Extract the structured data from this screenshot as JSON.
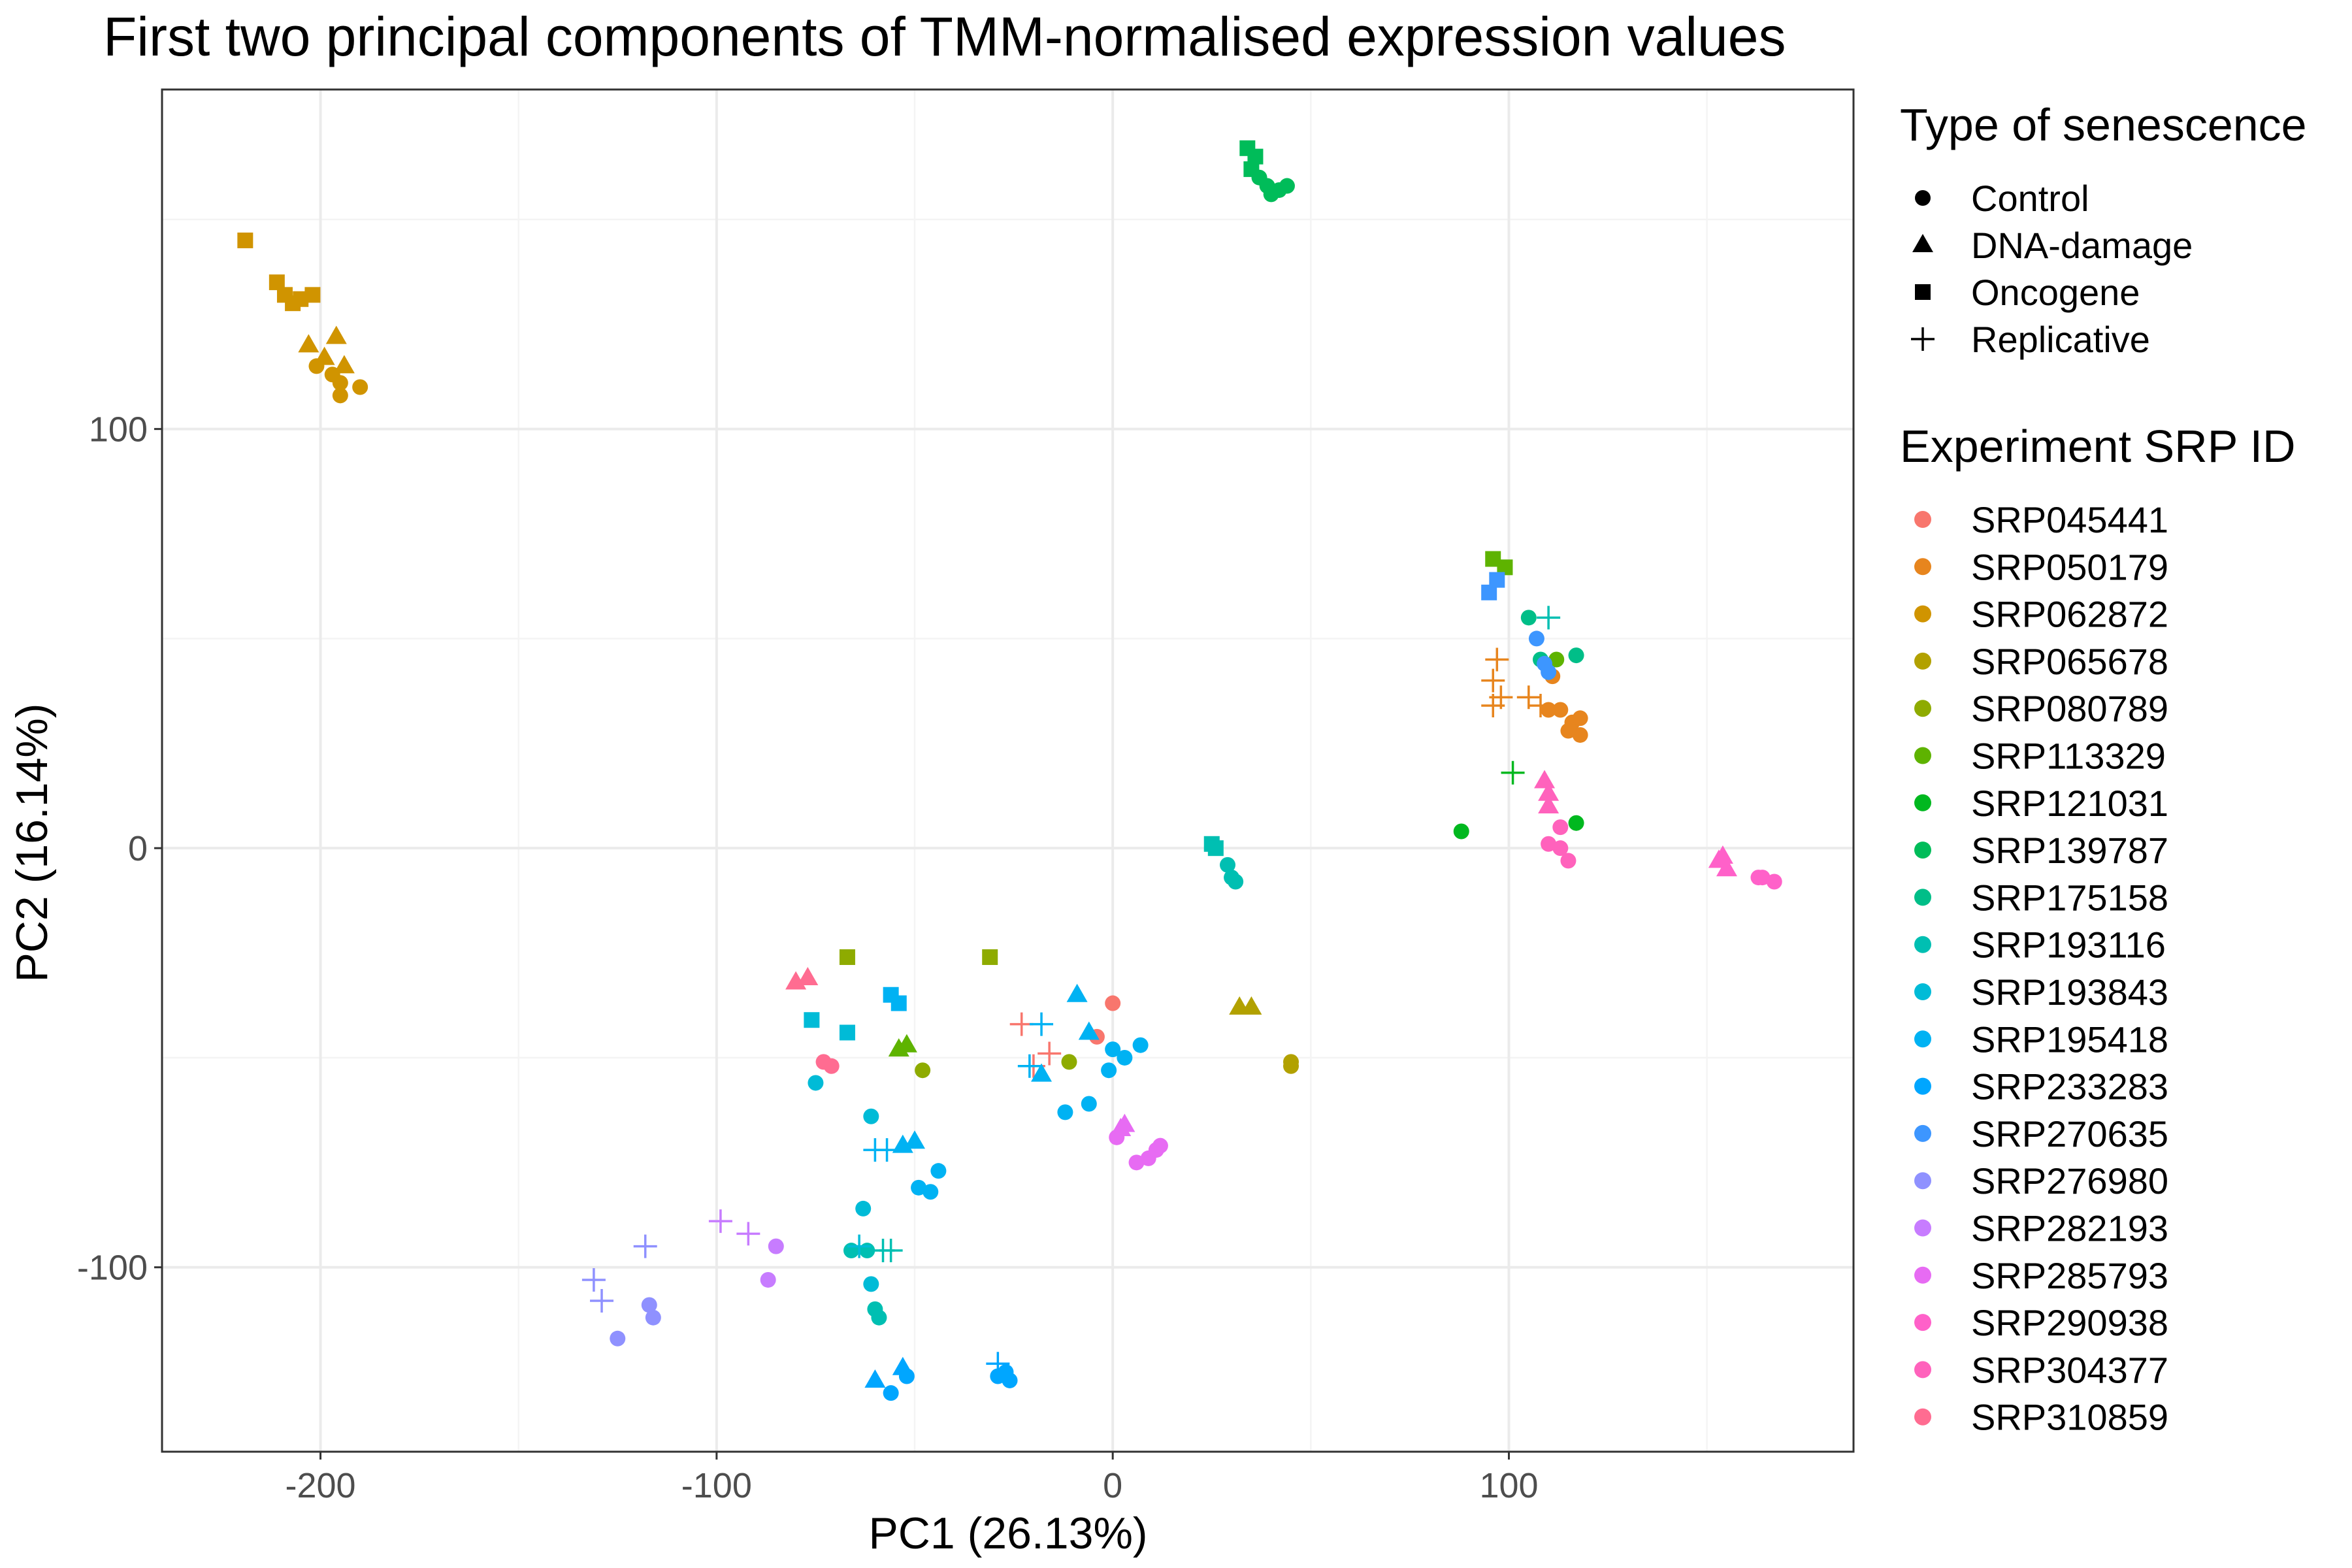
{
  "colors": {
    "SRP045441": "#F8766D",
    "SRP050179": "#E7851E",
    "SRP062872": "#D09400",
    "SRP065678": "#B2A100",
    "SRP080789": "#8EAB00",
    "SRP113329": "#5EB300",
    "SRP121031": "#00B81F",
    "SRP139787": "#00BC59",
    "SRP175158": "#00BE88",
    "SRP193116": "#00BFB2",
    "SRP193843": "#00BBD7",
    "SRP195418": "#00B2F3",
    "SRP233283": "#00A6FF",
    "SRP270635": "#3D96FF",
    "SRP276980": "#8F91FF",
    "SRP282193": "#C77CFF",
    "SRP285793": "#E76BF3",
    "SRP290938": "#FF61C9",
    "SRP304377": "#FF62BC",
    "SRP310859": "#FF6C91"
  },
  "chart_data": {
    "type": "scatter",
    "title": "First two principal components of TMM-normalised expression values",
    "xlabel": "PC1 (26.13%)",
    "ylabel": "PC2 (16.14%)",
    "xlim": [
      -240,
      187
    ],
    "ylim": [
      -144,
      181
    ],
    "x_ticks": [
      -200,
      -100,
      0,
      100
    ],
    "x_tick_labels": [
      "-200",
      "-100",
      "0",
      "100"
    ],
    "y_ticks": [
      -100,
      0,
      100
    ],
    "y_tick_labels": [
      "-100",
      "0",
      "100"
    ],
    "grid": true,
    "legend_position": "right",
    "shape_legend": {
      "title": "Type of senescence",
      "entries": [
        {
          "label": "Control",
          "shape": "circle"
        },
        {
          "label": "DNA-damage",
          "shape": "triangle"
        },
        {
          "label": "Oncogene",
          "shape": "square"
        },
        {
          "label": "Replicative",
          "shape": "plus"
        }
      ]
    },
    "color_legend": {
      "title": "Experiment SRP ID",
      "entries": [
        "SRP045441",
        "SRP050179",
        "SRP062872",
        "SRP065678",
        "SRP080789",
        "SRP113329",
        "SRP121031",
        "SRP139787",
        "SRP175158",
        "SRP193116",
        "SRP193843",
        "SRP195418",
        "SRP233283",
        "SRP270635",
        "SRP276980",
        "SRP282193",
        "SRP285793",
        "SRP290938",
        "SRP304377",
        "SRP310859"
      ]
    },
    "series": [
      {
        "name": "SRP045441",
        "points": [
          {
            "x": 0,
            "y": -37,
            "shape": "circle"
          },
          {
            "x": -4,
            "y": -45,
            "shape": "circle"
          },
          {
            "x": -23,
            "y": -42,
            "shape": "plus"
          },
          {
            "x": -16,
            "y": -49,
            "shape": "plus"
          },
          {
            "x": -20,
            "y": -52,
            "shape": "plus"
          }
        ]
      },
      {
        "name": "SRP050179",
        "points": [
          {
            "x": 97,
            "y": 45,
            "shape": "plus"
          },
          {
            "x": 96,
            "y": 40,
            "shape": "plus"
          },
          {
            "x": 96,
            "y": 34,
            "shape": "plus"
          },
          {
            "x": 98,
            "y": 36,
            "shape": "plus"
          },
          {
            "x": 105,
            "y": 36,
            "shape": "plus"
          },
          {
            "x": 108,
            "y": 34,
            "shape": "plus"
          },
          {
            "x": 111,
            "y": 41,
            "shape": "circle"
          },
          {
            "x": 110,
            "y": 33,
            "shape": "circle"
          },
          {
            "x": 113,
            "y": 33,
            "shape": "circle"
          },
          {
            "x": 116,
            "y": 30,
            "shape": "circle"
          },
          {
            "x": 118,
            "y": 31,
            "shape": "circle"
          },
          {
            "x": 118,
            "y": 27,
            "shape": "circle"
          },
          {
            "x": 115,
            "y": 28,
            "shape": "circle"
          }
        ]
      },
      {
        "name": "SRP062872",
        "points": [
          {
            "x": -219,
            "y": 145,
            "shape": "square"
          },
          {
            "x": -211,
            "y": 135,
            "shape": "square"
          },
          {
            "x": -209,
            "y": 132,
            "shape": "square"
          },
          {
            "x": -207,
            "y": 130,
            "shape": "square"
          },
          {
            "x": -205,
            "y": 131,
            "shape": "square"
          },
          {
            "x": -202,
            "y": 132,
            "shape": "square"
          },
          {
            "x": -203,
            "y": 120,
            "shape": "triangle"
          },
          {
            "x": -199,
            "y": 117,
            "shape": "triangle"
          },
          {
            "x": -196,
            "y": 122,
            "shape": "triangle"
          },
          {
            "x": -194,
            "y": 115,
            "shape": "triangle"
          },
          {
            "x": -201,
            "y": 115,
            "shape": "circle"
          },
          {
            "x": -197,
            "y": 113,
            "shape": "circle"
          },
          {
            "x": -195,
            "y": 108,
            "shape": "circle"
          },
          {
            "x": -190,
            "y": 110,
            "shape": "circle"
          },
          {
            "x": -195,
            "y": 111,
            "shape": "circle"
          }
        ]
      },
      {
        "name": "SRP065678",
        "points": [
          {
            "x": 32,
            "y": -38,
            "shape": "triangle"
          },
          {
            "x": 35,
            "y": -38,
            "shape": "triangle"
          },
          {
            "x": 45,
            "y": -51,
            "shape": "circle"
          },
          {
            "x": 45,
            "y": -52,
            "shape": "circle"
          }
        ]
      },
      {
        "name": "SRP080789",
        "points": [
          {
            "x": -67,
            "y": -26,
            "shape": "square"
          },
          {
            "x": -31,
            "y": -26,
            "shape": "square"
          },
          {
            "x": -48,
            "y": -53,
            "shape": "circle"
          },
          {
            "x": -11,
            "y": -51,
            "shape": "circle"
          }
        ]
      },
      {
        "name": "SRP113329",
        "points": [
          {
            "x": -54,
            "y": -48,
            "shape": "triangle"
          },
          {
            "x": -52,
            "y": -47,
            "shape": "triangle"
          },
          {
            "x": 96,
            "y": 69,
            "shape": "square"
          },
          {
            "x": 99,
            "y": 67,
            "shape": "square"
          },
          {
            "x": 112,
            "y": 45,
            "shape": "circle"
          }
        ]
      },
      {
        "name": "SRP121031",
        "points": [
          {
            "x": 88,
            "y": 4,
            "shape": "circle"
          },
          {
            "x": 101,
            "y": 18,
            "shape": "plus"
          },
          {
            "x": 117,
            "y": 6,
            "shape": "circle"
          }
        ]
      },
      {
        "name": "SRP139787",
        "points": [
          {
            "x": 34,
            "y": 167,
            "shape": "square"
          },
          {
            "x": 36,
            "y": 165,
            "shape": "square"
          },
          {
            "x": 35,
            "y": 162,
            "shape": "square"
          },
          {
            "x": 37,
            "y": 160,
            "shape": "circle"
          },
          {
            "x": 39,
            "y": 158,
            "shape": "circle"
          },
          {
            "x": 40,
            "y": 156,
            "shape": "circle"
          },
          {
            "x": 42,
            "y": 157,
            "shape": "circle"
          },
          {
            "x": 44,
            "y": 158,
            "shape": "circle"
          }
        ]
      },
      {
        "name": "SRP175158",
        "points": [
          {
            "x": 105,
            "y": 55,
            "shape": "circle"
          },
          {
            "x": 117,
            "y": 46,
            "shape": "circle"
          },
          {
            "x": 108,
            "y": 45,
            "shape": "circle"
          }
        ]
      },
      {
        "name": "SRP193116",
        "points": [
          {
            "x": 25,
            "y": 1,
            "shape": "square"
          },
          {
            "x": 26,
            "y": 0,
            "shape": "square"
          },
          {
            "x": 29,
            "y": -4,
            "shape": "circle"
          },
          {
            "x": 30,
            "y": -7,
            "shape": "circle"
          },
          {
            "x": 31,
            "y": -8,
            "shape": "circle"
          },
          {
            "x": 110,
            "y": 55,
            "shape": "plus"
          },
          {
            "x": -66,
            "y": -96,
            "shape": "circle"
          },
          {
            "x": -62,
            "y": -96,
            "shape": "circle"
          },
          {
            "x": -58,
            "y": -96,
            "shape": "plus"
          },
          {
            "x": -56,
            "y": -96,
            "shape": "plus"
          },
          {
            "x": -60,
            "y": -110,
            "shape": "circle"
          },
          {
            "x": -59,
            "y": -112,
            "shape": "circle"
          }
        ]
      },
      {
        "name": "SRP193843",
        "points": [
          {
            "x": -76,
            "y": -41,
            "shape": "square"
          },
          {
            "x": -67,
            "y": -44,
            "shape": "square"
          },
          {
            "x": -75,
            "y": -56,
            "shape": "circle"
          },
          {
            "x": -61,
            "y": -64,
            "shape": "circle"
          },
          {
            "x": -63,
            "y": -86,
            "shape": "circle"
          },
          {
            "x": -61,
            "y": -104,
            "shape": "circle"
          },
          {
            "x": -64,
            "y": -95,
            "shape": "plus"
          }
        ]
      },
      {
        "name": "SRP195418",
        "points": [
          {
            "x": -56,
            "y": -35,
            "shape": "square"
          },
          {
            "x": -54,
            "y": -37,
            "shape": "square"
          },
          {
            "x": -9,
            "y": -35,
            "shape": "triangle"
          },
          {
            "x": -6,
            "y": -44,
            "shape": "triangle"
          },
          {
            "x": -18,
            "y": -54,
            "shape": "triangle"
          },
          {
            "x": -18,
            "y": -42,
            "shape": "plus"
          },
          {
            "x": -21,
            "y": -52,
            "shape": "plus"
          },
          {
            "x": 0,
            "y": -48,
            "shape": "circle"
          },
          {
            "x": 7,
            "y": -47,
            "shape": "circle"
          },
          {
            "x": 3,
            "y": -50,
            "shape": "circle"
          },
          {
            "x": -1,
            "y": -53,
            "shape": "circle"
          },
          {
            "x": -6,
            "y": -61,
            "shape": "circle"
          },
          {
            "x": -12,
            "y": -63,
            "shape": "circle"
          },
          {
            "x": -50,
            "y": -70,
            "shape": "triangle"
          },
          {
            "x": -53,
            "y": -71,
            "shape": "triangle"
          },
          {
            "x": -60,
            "y": -72,
            "shape": "plus"
          },
          {
            "x": -57,
            "y": -72,
            "shape": "plus"
          },
          {
            "x": -44,
            "y": -77,
            "shape": "circle"
          },
          {
            "x": -49,
            "y": -81,
            "shape": "circle"
          },
          {
            "x": -46,
            "y": -82,
            "shape": "circle"
          }
        ]
      },
      {
        "name": "SRP233283",
        "points": [
          {
            "x": -60,
            "y": -127,
            "shape": "triangle"
          },
          {
            "x": -53,
            "y": -124,
            "shape": "triangle"
          },
          {
            "x": -52,
            "y": -126,
            "shape": "circle"
          },
          {
            "x": -56,
            "y": -130,
            "shape": "circle"
          },
          {
            "x": -29,
            "y": -123,
            "shape": "plus"
          },
          {
            "x": -29,
            "y": -126,
            "shape": "circle"
          },
          {
            "x": -26,
            "y": -127,
            "shape": "circle"
          },
          {
            "x": -27,
            "y": -125,
            "shape": "circle"
          }
        ]
      },
      {
        "name": "SRP270635",
        "points": [
          {
            "x": 95,
            "y": 61,
            "shape": "square"
          },
          {
            "x": 97,
            "y": 64,
            "shape": "square"
          },
          {
            "x": 107,
            "y": 50,
            "shape": "circle"
          },
          {
            "x": 109,
            "y": 44,
            "shape": "circle"
          },
          {
            "x": 110,
            "y": 42,
            "shape": "circle"
          }
        ]
      },
      {
        "name": "SRP276980",
        "points": [
          {
            "x": -131,
            "y": -103,
            "shape": "plus"
          },
          {
            "x": -129,
            "y": -108,
            "shape": "plus"
          },
          {
            "x": -118,
            "y": -95,
            "shape": "plus"
          },
          {
            "x": -117,
            "y": -109,
            "shape": "circle"
          },
          {
            "x": -116,
            "y": -112,
            "shape": "circle"
          },
          {
            "x": -125,
            "y": -117,
            "shape": "circle"
          }
        ]
      },
      {
        "name": "SRP282193",
        "points": [
          {
            "x": -99,
            "y": -89,
            "shape": "plus"
          },
          {
            "x": -92,
            "y": -92,
            "shape": "plus"
          },
          {
            "x": -85,
            "y": -95,
            "shape": "circle"
          },
          {
            "x": -87,
            "y": -103,
            "shape": "circle"
          }
        ]
      },
      {
        "name": "SRP285793",
        "points": [
          {
            "x": 2,
            "y": -67,
            "shape": "triangle"
          },
          {
            "x": 3,
            "y": -66,
            "shape": "triangle"
          },
          {
            "x": 1,
            "y": -69,
            "shape": "circle"
          },
          {
            "x": 6,
            "y": -75,
            "shape": "circle"
          },
          {
            "x": 9,
            "y": -74,
            "shape": "circle"
          },
          {
            "x": 11,
            "y": -72,
            "shape": "circle"
          },
          {
            "x": 12,
            "y": -71,
            "shape": "circle"
          }
        ]
      },
      {
        "name": "SRP290938",
        "points": [
          {
            "x": 153,
            "y": -3,
            "shape": "triangle"
          },
          {
            "x": 154,
            "y": -2,
            "shape": "triangle"
          },
          {
            "x": 155,
            "y": -5,
            "shape": "triangle"
          },
          {
            "x": 163,
            "y": -7,
            "shape": "circle"
          },
          {
            "x": 164,
            "y": -7,
            "shape": "circle"
          },
          {
            "x": 167,
            "y": -8,
            "shape": "circle"
          }
        ]
      },
      {
        "name": "SRP304377",
        "points": [
          {
            "x": 109,
            "y": 16,
            "shape": "triangle"
          },
          {
            "x": 110,
            "y": 13,
            "shape": "triangle"
          },
          {
            "x": 110,
            "y": 10,
            "shape": "triangle"
          },
          {
            "x": 113,
            "y": 5,
            "shape": "circle"
          },
          {
            "x": 110,
            "y": 1,
            "shape": "circle"
          },
          {
            "x": 113,
            "y": 0,
            "shape": "circle"
          },
          {
            "x": 115,
            "y": -3,
            "shape": "circle"
          }
        ]
      },
      {
        "name": "SRP310859",
        "points": [
          {
            "x": -80,
            "y": -32,
            "shape": "triangle"
          },
          {
            "x": -77,
            "y": -31,
            "shape": "triangle"
          },
          {
            "x": -73,
            "y": -51,
            "shape": "circle"
          },
          {
            "x": -71,
            "y": -52,
            "shape": "circle"
          }
        ]
      }
    ]
  }
}
